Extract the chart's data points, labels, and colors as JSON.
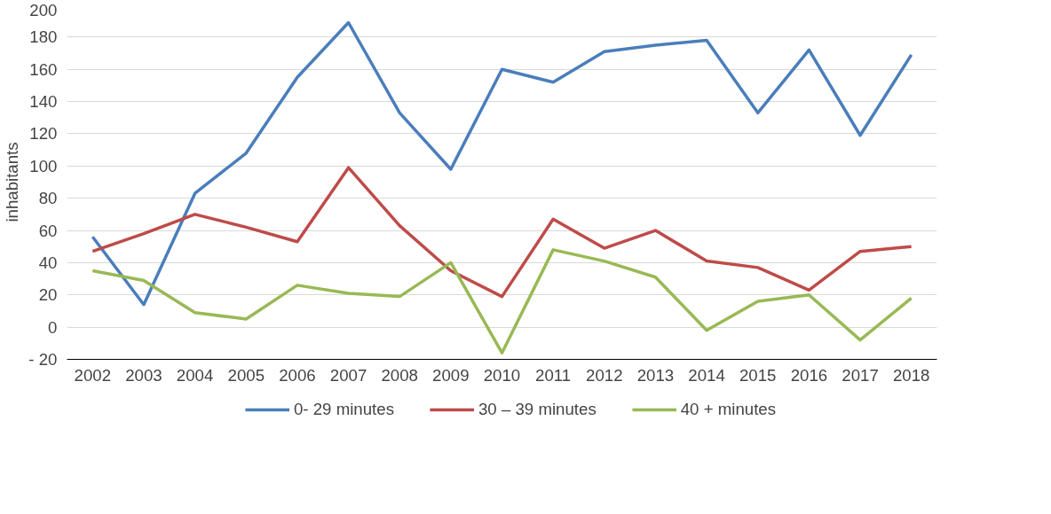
{
  "chart_data": {
    "type": "line",
    "ylabel": "inhabitants",
    "categories": [
      "2002",
      "2003",
      "2004",
      "2005",
      "2006",
      "2007",
      "2008",
      "2009",
      "2010",
      "2011",
      "2012",
      "2013",
      "2014",
      "2015",
      "2016",
      "2017",
      "2018"
    ],
    "series": [
      {
        "name": "0- 29 minutes",
        "color": "#4a7ebb",
        "values": [
          56,
          14,
          83,
          108,
          155,
          189,
          133,
          98,
          160,
          152,
          171,
          175,
          178,
          133,
          172,
          119,
          169
        ]
      },
      {
        "name": "30 – 39 minutes",
        "color": "#be4b48",
        "values": [
          47,
          58,
          70,
          62,
          53,
          99,
          63,
          35,
          19,
          67,
          49,
          60,
          41,
          37,
          23,
          47,
          50
        ]
      },
      {
        "name": "40 + minutes",
        "color": "#98b954",
        "values": [
          35,
          29,
          9,
          5,
          26,
          21,
          19,
          40,
          -16,
          48,
          41,
          31,
          -2,
          16,
          20,
          -8,
          18
        ]
      }
    ],
    "ylim": [
      -20,
      200
    ],
    "yticks": [
      {
        "value": -20,
        "label": "- 20"
      },
      0,
      20,
      40,
      60,
      80,
      100,
      120,
      140,
      160,
      180,
      200
    ],
    "grid": "y",
    "legend": "bottom",
    "marker": "none",
    "line_style": "solid"
  }
}
